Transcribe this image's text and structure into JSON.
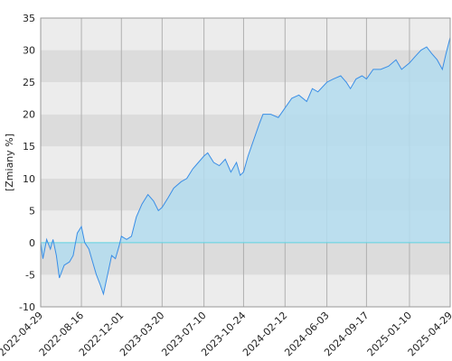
{
  "chart_data": {
    "type": "area",
    "y_label": "[Zmiany %]",
    "x": [
      "2022-04-29",
      "2022-05-05",
      "2022-05-15",
      "2022-05-25",
      "2022-06-01",
      "2022-06-10",
      "2022-06-18",
      "2022-07-01",
      "2022-07-15",
      "2022-07-25",
      "2022-08-05",
      "2022-08-16",
      "2022-08-25",
      "2022-09-05",
      "2022-09-15",
      "2022-09-25",
      "2022-10-05",
      "2022-10-14",
      "2022-10-25",
      "2022-11-05",
      "2022-11-15",
      "2022-11-25",
      "2022-12-01",
      "2022-12-15",
      "2022-12-28",
      "2023-01-10",
      "2023-01-25",
      "2023-02-10",
      "2023-02-25",
      "2023-03-10",
      "2023-03-20",
      "2023-04-05",
      "2023-04-20",
      "2023-05-10",
      "2023-05-25",
      "2023-06-10",
      "2023-06-25",
      "2023-07-10",
      "2023-07-20",
      "2023-08-05",
      "2023-08-20",
      "2023-09-05",
      "2023-09-20",
      "2023-10-05",
      "2023-10-15",
      "2023-10-24",
      "2023-11-05",
      "2023-11-20",
      "2023-12-05",
      "2023-12-15",
      "2024-01-05",
      "2024-01-25",
      "2024-02-12",
      "2024-03-01",
      "2024-03-20",
      "2024-04-10",
      "2024-04-25",
      "2024-05-10",
      "2024-06-03",
      "2024-06-20",
      "2024-07-10",
      "2024-07-25",
      "2024-08-05",
      "2024-08-20",
      "2024-09-05",
      "2024-09-17",
      "2024-10-05",
      "2024-10-25",
      "2024-11-15",
      "2024-12-05",
      "2024-12-20",
      "2025-01-10",
      "2025-01-25",
      "2025-02-10",
      "2025-02-25",
      "2025-03-10",
      "2025-03-25",
      "2025-04-08",
      "2025-04-18",
      "2025-04-29"
    ],
    "series": [
      {
        "color": "#3a8ee6",
        "fill": "#b3dcef",
        "values": [
          0,
          -2.5,
          0.5,
          -1,
          0.5,
          -2,
          -5.5,
          -3.5,
          -3,
          -2,
          1.5,
          2.5,
          0,
          -1,
          -3,
          -5,
          -6.5,
          -8,
          -5,
          -2,
          -2.5,
          -0.5,
          1,
          0.5,
          1,
          4,
          6,
          7.5,
          6.5,
          5,
          5.5,
          7,
          8.5,
          9.5,
          10,
          11.5,
          12.5,
          13.5,
          14,
          12.5,
          12,
          13,
          11,
          12.5,
          10.5,
          11,
          13.5,
          16,
          18.5,
          20,
          20,
          19.5,
          21,
          22.5,
          23,
          22,
          24,
          23.5,
          25,
          25.5,
          26,
          25,
          24,
          25.5,
          26,
          25.5,
          27,
          27,
          27.5,
          28.5,
          27,
          28,
          29,
          30,
          30.5,
          29.5,
          28.5,
          27,
          29.5,
          32
        ]
      }
    ],
    "xlim": [
      "2022-04-29",
      "2025-04-29"
    ],
    "xticks": [
      "2022-04-29",
      "2022-08-16",
      "2022-12-01",
      "2023-03-20",
      "2023-07-10",
      "2023-10-24",
      "2024-02-12",
      "2024-06-03",
      "2024-09-17",
      "2025-01-10",
      "2025-04-29"
    ],
    "ylim": [
      -10,
      35
    ],
    "yticks": [
      -10,
      -5,
      0,
      5,
      10,
      15,
      20,
      25,
      30,
      35
    ],
    "grid": true
  }
}
